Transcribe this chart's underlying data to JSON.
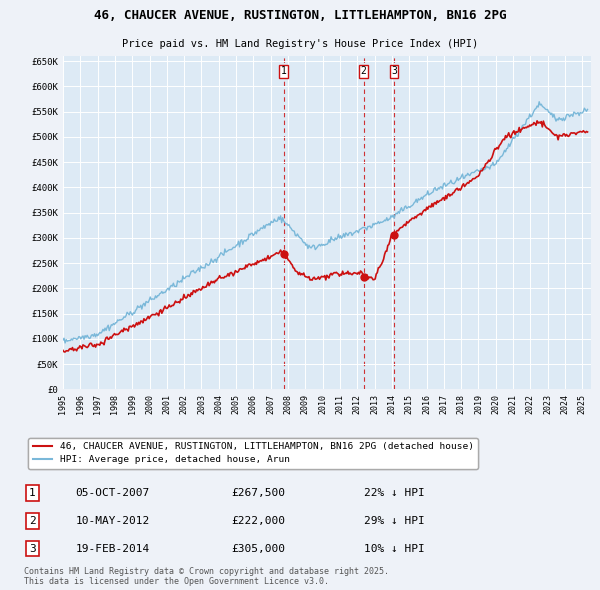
{
  "title1": "46, CHAUCER AVENUE, RUSTINGTON, LITTLEHAMPTON, BN16 2PG",
  "title2": "Price paid vs. HM Land Registry's House Price Index (HPI)",
  "hpi_color": "#7ab8d9",
  "price_color": "#cc1111",
  "dashed_line_color": "#cc1111",
  "background_color": "#eef2f8",
  "plot_bg_color": "#ddeaf5",
  "grid_color": "#ffffff",
  "ylim": [
    0,
    660000
  ],
  "yticks": [
    0,
    50000,
    100000,
    150000,
    200000,
    250000,
    300000,
    350000,
    400000,
    450000,
    500000,
    550000,
    600000,
    650000
  ],
  "transactions": [
    {
      "num": 1,
      "date": "05-OCT-2007",
      "price": 267500,
      "pct": "22%",
      "year": 2007.75
    },
    {
      "num": 2,
      "date": "10-MAY-2012",
      "price": 222000,
      "pct": "29%",
      "year": 2012.36
    },
    {
      "num": 3,
      "date": "19-FEB-2014",
      "price": 305000,
      "pct": "10%",
      "year": 2014.12
    }
  ],
  "legend_label_price": "46, CHAUCER AVENUE, RUSTINGTON, LITTLEHAMPTON, BN16 2PG (detached house)",
  "legend_label_hpi": "HPI: Average price, detached house, Arun",
  "footer": "Contains HM Land Registry data © Crown copyright and database right 2025.\nThis data is licensed under the Open Government Licence v3.0.",
  "xmin": 1995,
  "xmax": 2025.5
}
